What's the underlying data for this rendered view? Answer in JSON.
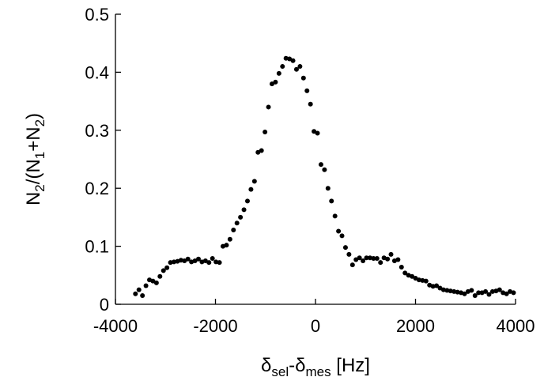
{
  "chart_data": {
    "type": "scatter",
    "title": "",
    "xlabel": {
      "main": "δ",
      "sub1": "sel",
      "mid": "-δ",
      "sub2": "mes",
      "tail": " [Hz]"
    },
    "ylabel": {
      "p1": "N",
      "s1": "2",
      "p2": "/(N",
      "s2": "1",
      "p3": "+N",
      "s3": "2",
      "p4": ")"
    },
    "xlim": [
      -4000,
      4000
    ],
    "ylim": [
      0,
      0.5
    ],
    "xticks": [
      -4000,
      -2000,
      0,
      2000,
      4000
    ],
    "xtick_labels": [
      "-4000",
      "-2000",
      "0",
      "2000",
      "4000"
    ],
    "yticks": [
      0,
      0.1,
      0.2,
      0.3,
      0.4,
      0.5
    ],
    "ytick_labels": [
      "0",
      "0.1",
      "0.2",
      "0.3",
      "0.4",
      "0.5"
    ],
    "grid": false,
    "marker_color": "#000000",
    "series": [
      {
        "x": [
          -3600,
          -3530,
          -3460,
          -3390,
          -3320,
          -3250,
          -3180,
          -3110,
          -3040,
          -2970,
          -2900,
          -2830,
          -2760,
          -2690,
          -2620,
          -2550,
          -2480,
          -2410,
          -2340,
          -2270,
          -2200,
          -2130,
          -2060,
          -1990,
          -1920,
          -1850,
          -1780,
          -1710,
          -1640,
          -1570,
          -1500,
          -1430,
          -1360,
          -1290,
          -1220,
          -1150,
          -1080,
          -1010,
          -940,
          -870,
          -800,
          -730,
          -660,
          -590,
          -520,
          -450,
          -380,
          -310,
          -240,
          -170,
          -100,
          -30,
          40,
          110,
          180,
          250,
          320,
          390,
          460,
          530,
          600,
          670,
          740,
          810,
          880,
          950,
          1020,
          1090,
          1160,
          1230,
          1300,
          1370,
          1440,
          1510,
          1580,
          1650,
          1720,
          1790,
          1860,
          1930,
          2000,
          2070,
          2140,
          2210,
          2280,
          2350,
          2420,
          2490,
          2560,
          2630,
          2700,
          2770,
          2840,
          2910,
          2980,
          3050,
          3120,
          3190,
          3260,
          3330,
          3400,
          3470,
          3540,
          3610,
          3680,
          3750,
          3820,
          3890,
          3960
        ],
        "y": [
          0.018,
          0.025,
          0.015,
          0.032,
          0.042,
          0.04,
          0.037,
          0.048,
          0.058,
          0.063,
          0.072,
          0.073,
          0.074,
          0.076,
          0.075,
          0.078,
          0.073,
          0.075,
          0.078,
          0.073,
          0.075,
          0.072,
          0.079,
          0.073,
          0.072,
          0.1,
          0.102,
          0.112,
          0.128,
          0.14,
          0.15,
          0.163,
          0.178,
          0.198,
          0.212,
          0.262,
          0.265,
          0.297,
          0.34,
          0.38,
          0.383,
          0.398,
          0.41,
          0.424,
          0.423,
          0.42,
          0.405,
          0.41,
          0.39,
          0.368,
          0.345,
          0.298,
          0.295,
          0.241,
          0.232,
          0.2,
          0.178,
          0.152,
          0.126,
          0.118,
          0.098,
          0.086,
          0.068,
          0.077,
          0.08,
          0.075,
          0.08,
          0.08,
          0.079,
          0.079,
          0.072,
          0.08,
          0.078,
          0.086,
          0.075,
          0.077,
          0.064,
          0.054,
          0.05,
          0.048,
          0.045,
          0.042,
          0.041,
          0.04,
          0.033,
          0.031,
          0.032,
          0.028,
          0.025,
          0.024,
          0.023,
          0.022,
          0.021,
          0.02,
          0.018,
          0.022,
          0.024,
          0.015,
          0.02,
          0.02,
          0.022,
          0.017,
          0.022,
          0.023,
          0.025,
          0.02,
          0.018,
          0.022,
          0.02
        ]
      }
    ]
  }
}
